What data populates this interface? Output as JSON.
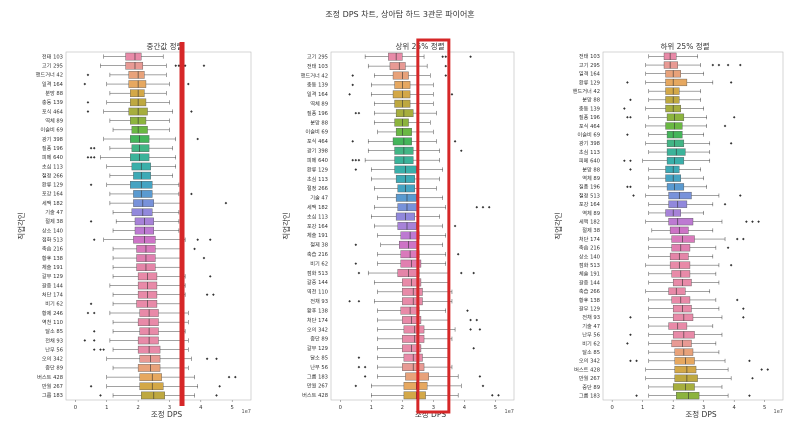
{
  "suptitle": "조정 DPS 차트, 상아탑 하드 3관문 파이어혼",
  "colors": {
    "highlight": "#d62728",
    "whisker": "#444444",
    "palette": [
      "#e88aa8",
      "#e89a94",
      "#e8a27a",
      "#e6a860",
      "#d3a848",
      "#bea840",
      "#a6ae3e",
      "#8cb43e",
      "#6ab843",
      "#44b55a",
      "#42b585",
      "#3bb39a",
      "#3aafaa",
      "#3daab6",
      "#45a3c2",
      "#5a9ad0",
      "#7892da",
      "#9188dc",
      "#a782d8",
      "#bd7ad2",
      "#cd74c6",
      "#d97abb",
      "#e07fb0",
      "#e485a8",
      "#e88aa8",
      "#e88aa8",
      "#e88aa8",
      "#e88aa8",
      "#e88aa8",
      "#e88aa8",
      "#e88aa8",
      "#e88aa8"
    ]
  },
  "chart_data": [
    {
      "type": "box",
      "title": "중간값 정렬",
      "xlabel": "조정 DPS",
      "ylabel": "직업각인",
      "x_offset_label": "1e7",
      "xlim": [
        -0.3,
        5.6
      ],
      "xticks": [
        0,
        1,
        2,
        3,
        4,
        5
      ],
      "highlight_box": {
        "x_from": 3.4,
        "x_to": 3.4,
        "style": "line"
      },
      "categories": [
        "전태 103",
        "고기 295",
        "핸드거너 42",
        "일격 164",
        "분망 88",
        "충동 139",
        "포식 464",
        "역체 89",
        "이슬비 69",
        "광기 398",
        "질풍 196",
        "피메 640",
        "초심 113",
        "절정 266",
        "환류 129",
        "포강 164",
        "세맥 182",
        "기술 47",
        "절제 38",
        "상소 140",
        "점화 513",
        "축습 216",
        "황후 138",
        "체술 191",
        "갈무 129",
        "갈증 144",
        "처단 174",
        "비기 62",
        "황제 246",
        "역천 110",
        "달소 85",
        "전채 93",
        "난무 56",
        "오의 342",
        "중단 89",
        "버스트 428",
        "만월 267",
        "그룹 183"
      ],
      "medians": [
        1.9,
        1.9,
        2.0,
        2.0,
        2.0,
        2.0,
        2.0,
        2.0,
        2.0,
        2.05,
        2.05,
        2.05,
        2.1,
        2.1,
        2.1,
        2.1,
        2.15,
        2.15,
        2.2,
        2.2,
        2.2,
        2.25,
        2.25,
        2.25,
        2.3,
        2.3,
        2.3,
        2.3,
        2.35,
        2.35,
        2.35,
        2.35,
        2.35,
        2.4,
        2.4,
        2.45,
        2.45,
        2.5
      ],
      "q1": [
        1.6,
        1.6,
        1.7,
        1.7,
        1.75,
        1.75,
        1.7,
        1.75,
        1.8,
        1.75,
        1.8,
        1.75,
        1.8,
        1.85,
        1.75,
        1.85,
        1.85,
        1.8,
        1.9,
        1.9,
        1.85,
        1.95,
        1.95,
        1.95,
        2.0,
        2.0,
        2.0,
        1.95,
        2.05,
        2.0,
        2.05,
        2.0,
        2.0,
        2.05,
        2.0,
        2.05,
        2.05,
        2.1
      ],
      "q3": [
        2.1,
        2.15,
        2.2,
        2.25,
        2.2,
        2.25,
        2.3,
        2.25,
        2.3,
        2.35,
        2.35,
        2.35,
        2.4,
        2.4,
        2.45,
        2.45,
        2.5,
        2.45,
        2.5,
        2.5,
        2.55,
        2.55,
        2.55,
        2.55,
        2.6,
        2.6,
        2.6,
        2.6,
        2.65,
        2.65,
        2.65,
        2.65,
        2.7,
        2.7,
        2.7,
        2.75,
        2.8,
        2.85
      ],
      "whisker_low": [
        0.9,
        0.8,
        1.1,
        1.0,
        1.1,
        1.0,
        0.9,
        1.1,
        1.2,
        0.9,
        1.1,
        0.8,
        1.0,
        1.1,
        1.0,
        1.1,
        1.1,
        1.2,
        1.3,
        1.2,
        0.9,
        1.2,
        1.2,
        1.2,
        1.2,
        1.1,
        1.2,
        1.2,
        1.1,
        1.2,
        1.2,
        1.1,
        1.2,
        1.0,
        1.2,
        1.0,
        1.0,
        1.2
      ],
      "whisker_high": [
        2.8,
        2.9,
        2.9,
        3.0,
        2.9,
        3.0,
        3.1,
        3.0,
        3.0,
        3.2,
        3.1,
        3.2,
        3.2,
        3.1,
        3.3,
        3.3,
        3.4,
        3.3,
        3.3,
        3.3,
        3.5,
        3.4,
        3.4,
        3.4,
        3.5,
        3.5,
        3.5,
        3.4,
        3.6,
        3.6,
        3.5,
        3.6,
        3.6,
        3.7,
        3.6,
        3.8,
        3.9,
        3.8
      ],
      "outliers": [
        [
          3.4
        ],
        [
          3.2,
          3.3,
          3.5,
          4.1
        ],
        [
          0.4,
          3.4
        ],
        [
          0.3,
          3.6
        ],
        [],
        [
          0.4
        ],
        [
          0.4,
          3.7
        ],
        [],
        [],
        [
          3.9
        ],
        [
          0.5,
          0.6
        ],
        [
          0.4,
          0.5,
          0.6
        ],
        [],
        [],
        [
          0.5
        ],
        [
          3.7
        ],
        [
          4.8
        ],
        [],
        [
          0.5
        ],
        [],
        [
          0.6,
          3.9,
          4.3
        ],
        [
          3.8
        ],
        [
          4.1
        ],
        [],
        [
          4.3
        ],
        [],
        [
          4.2,
          4.4
        ],
        [
          0.5
        ],
        [
          0.4,
          0.6
        ],
        [],
        [
          0.6
        ],
        [
          0.3,
          0.6
        ],
        [
          0.6,
          0.8,
          0.9
        ],
        [
          4.2,
          4.5
        ],
        [],
        [
          4.9,
          5.1
        ],
        [
          0.5,
          4.6
        ],
        [
          0.8,
          4.5
        ]
      ]
    },
    {
      "type": "box",
      "title": "상위 25% 정렬",
      "xlabel": "조정 DPS",
      "ylabel": "직업각인",
      "x_offset_label": "1e7",
      "xlim": [
        -0.3,
        5.6
      ],
      "xticks": [
        0,
        1,
        2,
        3,
        4,
        5
      ],
      "highlight_box": {
        "x_from": 2.5,
        "x_to": 3.5,
        "style": "rect"
      },
      "categories": [
        "고기 295",
        "전태 103",
        "핸드거너 42",
        "충동 139",
        "일격 164",
        "역체 89",
        "질풍 196",
        "분망 88",
        "이슬비 69",
        "포식 464",
        "광기 398",
        "피메 640",
        "환류 129",
        "초심 113",
        "절정 266",
        "기술 47",
        "세맥 182",
        "초심 113",
        "포강 164",
        "체술 191",
        "절제 38",
        "축습 216",
        "비기 62",
        "점화 513",
        "갈증 144",
        "역천 110",
        "전채 93",
        "황후 138",
        "처단 174",
        "오의 342",
        "중단 89",
        "갈무 129",
        "달소 85",
        "난무 56",
        "그룹 183",
        "만월 267",
        "버스트 428"
      ],
      "medians": [
        1.8,
        1.9,
        2.0,
        2.0,
        2.0,
        2.0,
        2.05,
        2.0,
        2.0,
        2.05,
        2.05,
        2.05,
        2.1,
        2.1,
        2.1,
        2.15,
        2.15,
        2.1,
        2.15,
        2.25,
        2.2,
        2.25,
        2.3,
        2.2,
        2.3,
        2.35,
        2.35,
        2.25,
        2.3,
        2.4,
        2.4,
        2.3,
        2.35,
        2.35,
        2.5,
        2.45,
        2.45
      ],
      "q1": [
        1.55,
        1.6,
        1.7,
        1.75,
        1.7,
        1.75,
        1.8,
        1.75,
        1.8,
        1.7,
        1.75,
        1.75,
        1.75,
        1.8,
        1.85,
        1.8,
        1.85,
        1.8,
        1.85,
        1.95,
        1.9,
        1.95,
        1.95,
        1.85,
        2.0,
        2.0,
        2.0,
        1.95,
        2.0,
        2.05,
        2.0,
        2.0,
        2.05,
        2.0,
        2.1,
        2.05,
        2.05
      ],
      "q3": [
        2.0,
        2.1,
        2.2,
        2.25,
        2.25,
        2.25,
        2.35,
        2.2,
        2.3,
        2.3,
        2.35,
        2.35,
        2.45,
        2.4,
        2.4,
        2.45,
        2.5,
        2.4,
        2.45,
        2.55,
        2.5,
        2.55,
        2.6,
        2.55,
        2.6,
        2.65,
        2.65,
        2.55,
        2.6,
        2.7,
        2.7,
        2.6,
        2.65,
        2.7,
        2.85,
        2.8,
        2.75
      ],
      "whisker_low": [
        0.8,
        0.9,
        1.1,
        1.0,
        1.0,
        1.1,
        1.1,
        1.1,
        1.2,
        0.9,
        0.9,
        0.8,
        1.0,
        1.0,
        1.1,
        1.2,
        1.1,
        1.0,
        1.1,
        1.2,
        1.3,
        1.2,
        1.2,
        0.9,
        1.1,
        1.2,
        1.1,
        1.2,
        1.2,
        1.2,
        1.2,
        1.2,
        1.2,
        1.2,
        1.2,
        1.0,
        1.0
      ],
      "whisker_high": [
        2.7,
        2.8,
        2.9,
        3.0,
        3.0,
        3.0,
        3.1,
        2.9,
        3.0,
        3.1,
        3.2,
        3.2,
        3.3,
        3.2,
        3.1,
        3.3,
        3.4,
        3.2,
        3.3,
        3.4,
        3.3,
        3.4,
        3.4,
        3.5,
        3.5,
        3.6,
        3.6,
        3.4,
        3.5,
        3.7,
        3.6,
        3.5,
        3.5,
        3.6,
        3.8,
        3.9,
        3.8
      ],
      "outliers": [
        [
          3.3,
          3.4,
          4.2
        ],
        [
          3.4
        ],
        [
          0.4,
          3.4
        ],
        [
          0.4
        ],
        [
          0.3,
          3.6
        ],
        [],
        [
          0.5,
          0.6
        ],
        [],
        [],
        [
          0.4,
          3.7
        ],
        [
          3.9
        ],
        [
          0.4,
          0.5,
          0.6
        ],
        [
          0.5
        ],
        [],
        [],
        [],
        [
          4.8,
          4.6,
          4.4
        ],
        [],
        [
          3.7
        ],
        [],
        [
          0.5
        ],
        [
          3.8
        ],
        [
          0.5
        ],
        [
          0.6,
          3.9,
          4.3
        ],
        [],
        [],
        [
          0.3,
          0.6
        ],
        [
          4.1
        ],
        [
          4.2,
          4.4
        ],
        [
          4.2,
          4.5
        ],
        [],
        [
          4.3
        ],
        [
          0.6
        ],
        [
          0.6,
          0.8
        ],
        [
          0.8,
          4.5
        ],
        [
          0.5,
          4.6
        ],
        [
          4.9,
          5.1
        ]
      ]
    },
    {
      "type": "box",
      "title": "하위 25% 정렬",
      "xlabel": "조정 DPS",
      "ylabel": "직업각인",
      "x_offset_label": "1e7",
      "xlim": [
        -0.3,
        5.6
      ],
      "xticks": [
        0,
        1,
        2,
        3,
        4,
        5
      ],
      "highlight_box": null,
      "categories": [
        "전태 103",
        "고기 295",
        "일격 164",
        "환류 129",
        "핸드거너 42",
        "분망 88",
        "충동 139",
        "질풍 196",
        "포식 464",
        "이슬비 69",
        "광기 398",
        "초심 113",
        "피메 640",
        "분망 88",
        "역체 89",
        "질풍 196",
        "절정 513",
        "포강 164",
        "역체 89",
        "세맥 182",
        "절제 38",
        "처단 174",
        "축습 216",
        "상소 140",
        "점화 513",
        "체술 191",
        "갈증 144",
        "축습 266",
        "황후 138",
        "갈무 129",
        "전채 93",
        "기술 47",
        "난무 56",
        "비기 62",
        "달소 85",
        "오의 342",
        "버스트 428",
        "만월 267",
        "중단 89",
        "그룹 183"
      ],
      "medians": [
        1.9,
        1.9,
        2.0,
        2.0,
        2.0,
        2.0,
        2.0,
        2.05,
        2.05,
        2.0,
        2.05,
        2.1,
        2.05,
        2.0,
        2.0,
        2.05,
        2.2,
        2.15,
        2.0,
        2.15,
        2.2,
        2.3,
        2.25,
        2.2,
        2.2,
        2.25,
        2.3,
        2.1,
        2.25,
        2.3,
        2.35,
        2.15,
        2.35,
        2.3,
        2.35,
        2.4,
        2.45,
        2.45,
        2.4,
        2.5
      ],
      "q1": [
        1.7,
        1.7,
        1.75,
        1.75,
        1.75,
        1.75,
        1.75,
        1.8,
        1.75,
        1.8,
        1.8,
        1.8,
        1.8,
        1.75,
        1.75,
        1.8,
        1.85,
        1.85,
        1.75,
        1.85,
        1.9,
        1.95,
        1.95,
        1.9,
        1.9,
        1.95,
        2.0,
        1.85,
        1.95,
        2.0,
        2.0,
        1.85,
        2.0,
        1.95,
        2.05,
        2.05,
        2.05,
        2.05,
        2.0,
        2.1
      ],
      "q3": [
        2.1,
        2.15,
        2.25,
        2.45,
        2.2,
        2.2,
        2.25,
        2.35,
        2.3,
        2.3,
        2.35,
        2.4,
        2.35,
        2.2,
        2.25,
        2.35,
        2.6,
        2.45,
        2.25,
        2.65,
        2.5,
        2.7,
        2.55,
        2.5,
        2.55,
        2.55,
        2.6,
        2.4,
        2.55,
        2.6,
        2.65,
        2.45,
        2.7,
        2.6,
        2.65,
        2.7,
        2.75,
        2.8,
        2.7,
        2.85
      ],
      "whisker_low": [
        1.2,
        1.1,
        1.1,
        1.1,
        1.2,
        1.2,
        1.1,
        1.2,
        1.1,
        1.2,
        1.1,
        1.2,
        1.0,
        1.2,
        1.2,
        1.2,
        1.1,
        1.2,
        1.2,
        1.1,
        1.3,
        1.2,
        1.2,
        1.2,
        1.1,
        1.2,
        1.2,
        1.1,
        1.2,
        1.2,
        1.2,
        1.2,
        1.2,
        1.2,
        1.2,
        1.2,
        1.1,
        1.1,
        1.2,
        1.2
      ],
      "whisker_high": [
        2.8,
        2.9,
        3.0,
        3.3,
        2.9,
        2.9,
        3.0,
        3.1,
        3.1,
        3.0,
        3.2,
        3.2,
        3.2,
        2.9,
        3.0,
        3.1,
        3.5,
        3.3,
        3.0,
        3.6,
        3.3,
        3.7,
        3.4,
        3.3,
        3.5,
        3.4,
        3.5,
        3.2,
        3.4,
        3.5,
        3.6,
        3.3,
        3.6,
        3.4,
        3.5,
        3.7,
        3.8,
        3.9,
        3.6,
        3.8
      ],
      "outliers": [
        [],
        [
          3.3,
          3.5,
          3.8,
          4.2
        ],
        [],
        [
          0.5,
          3.9
        ],
        [],
        [
          0.6
        ],
        [
          0.4
        ],
        [
          0.5,
          0.6,
          4.0
        ],
        [
          3.7
        ],
        [
          0.5
        ],
        [
          3.9
        ],
        [],
        [
          0.4,
          0.6
        ],
        [
          0.6
        ],
        [],
        [
          0.5,
          0.6
        ],
        [
          0.7,
          4.2
        ],
        [
          3.7
        ],
        [],
        [
          4.4,
          4.6,
          4.8
        ],
        [],
        [
          4.1,
          4.3
        ],
        [
          3.8
        ],
        [],
        [
          3.9
        ],
        [],
        [],
        [],
        [
          4.1
        ],
        [
          4.3
        ],
        [
          0.6,
          4.3
        ],
        [],
        [
          0.6
        ],
        [
          0.5
        ],
        [],
        [
          0.6,
          0.8,
          4.5
        ],
        [
          4.9,
          5.1
        ],
        [
          4.6
        ],
        [],
        [
          0.8,
          4.5
        ]
      ]
    }
  ]
}
